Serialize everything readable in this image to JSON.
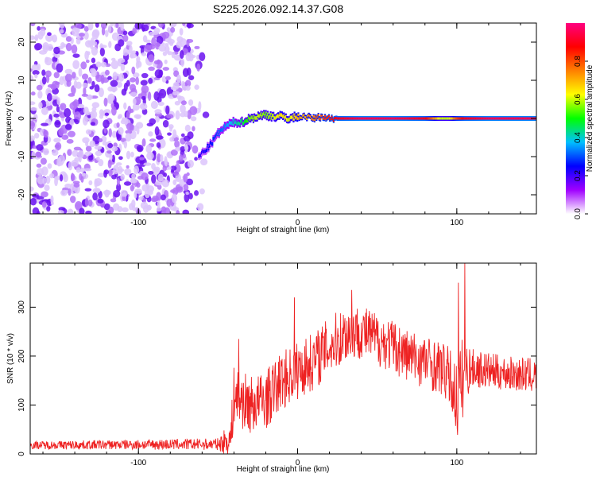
{
  "title": "S225.2026.092.14.37.G08",
  "chart_data": [
    {
      "type": "heatmap",
      "xlabel": "Height of straight line (km)",
      "ylabel": "Frequency (Hz)",
      "xlim": [
        -168,
        150
      ],
      "ylim": [
        -25,
        25
      ],
      "x_ticks": [
        -100,
        0,
        100
      ],
      "y_ticks": [
        -20,
        -10,
        0,
        10,
        20
      ],
      "colorbar": {
        "label": "Normalized spectral amplitude",
        "range": [
          0,
          1
        ],
        "ticks": [
          0,
          0.2,
          0.4,
          0.6,
          0.8
        ],
        "tick_labels": [
          "0.0",
          "0.2",
          "0.4",
          "0.6",
          "0.8"
        ],
        "colors": [
          "#ffffff",
          "#a000ff",
          "#0000ff",
          "#00c0ff",
          "#00ff00",
          "#ffff00",
          "#ff8000",
          "#ff0000",
          "#ff0080"
        ]
      },
      "noise_region_x": [
        -168,
        -55
      ],
      "ridge": {
        "x": [
          -62,
          -55,
          -50,
          -45,
          -40,
          -35,
          -30,
          -25,
          -20,
          -15,
          -10,
          -5,
          0,
          5,
          10,
          15,
          20,
          25,
          40,
          60,
          80,
          85,
          90,
          95,
          100,
          105,
          120,
          150
        ],
        "freq": [
          -10,
          -7,
          -4,
          -2,
          -1,
          -1,
          0,
          0.5,
          1,
          0.5,
          0.5,
          0,
          0.5,
          0.5,
          0,
          0.5,
          0,
          0,
          0,
          0,
          0,
          0,
          0,
          0,
          0,
          0,
          0,
          0
        ],
        "amp": [
          0.2,
          0.25,
          0.3,
          0.35,
          0.4,
          0.45,
          0.55,
          0.6,
          0.55,
          0.6,
          0.65,
          0.6,
          0.7,
          0.7,
          0.75,
          0.8,
          0.85,
          0.9,
          0.95,
          0.95,
          0.9,
          0.75,
          0.6,
          0.6,
          0.8,
          0.9,
          0.95,
          0.95
        ]
      }
    },
    {
      "type": "line",
      "xlabel": "Height of straight line (km)",
      "ylabel": "SNR (10 * v/v)",
      "xlim": [
        -168,
        150
      ],
      "ylim": [
        0,
        390
      ],
      "x_ticks": [
        -100,
        0,
        100
      ],
      "y_ticks": [
        0,
        100,
        200,
        300
      ],
      "color": "#ee2222",
      "envelope": {
        "x": [
          -168,
          -50,
          -42,
          -40,
          -30,
          -20,
          -10,
          -5,
          0,
          10,
          20,
          30,
          40,
          50,
          60,
          70,
          80,
          90,
          95,
          100,
          103,
          105,
          110,
          130,
          150
        ],
        "mean": [
          18,
          20,
          30,
          120,
          100,
          110,
          150,
          160,
          170,
          190,
          220,
          245,
          250,
          235,
          220,
          200,
          190,
          175,
          160,
          110,
          140,
          170,
          175,
          165,
          160
        ],
        "spread": [
          8,
          12,
          40,
          60,
          60,
          60,
          60,
          60,
          60,
          60,
          60,
          60,
          55,
          55,
          55,
          55,
          55,
          55,
          60,
          80,
          100,
          60,
          40,
          35,
          35
        ]
      },
      "peaks": [
        {
          "x": -37,
          "y": 235
        },
        {
          "x": -2,
          "y": 320
        },
        {
          "x": 34,
          "y": 335
        },
        {
          "x": 101,
          "y": 350
        },
        {
          "x": 105,
          "y": 390
        }
      ]
    }
  ]
}
